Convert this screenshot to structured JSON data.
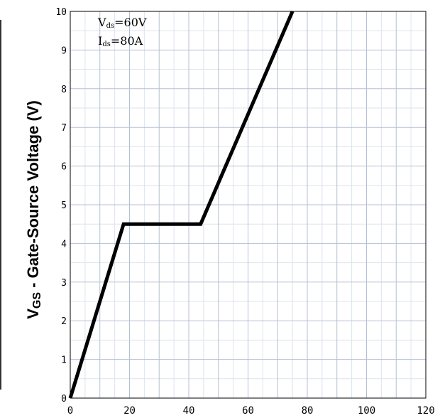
{
  "chart_data": {
    "type": "line",
    "ylabel": {
      "symbol": "V",
      "subscript": "GS",
      "text": " - Gate-Source Voltage (V)"
    },
    "xlabel": "",
    "xlim": [
      0,
      120
    ],
    "ylim": [
      0,
      10
    ],
    "x_ticks": [
      "0",
      "20",
      "40",
      "60",
      "80",
      "100",
      "120"
    ],
    "y_ticks": [
      "0",
      "1",
      "2",
      "3",
      "4",
      "5",
      "6",
      "7",
      "8",
      "9",
      "10"
    ],
    "grid": true,
    "annotations": [
      {
        "main": "V",
        "sub": "ds",
        "rest": "=60V"
      },
      {
        "main": "I",
        "sub": "ds",
        "rest": "=80A"
      }
    ],
    "series": [
      {
        "color": "#000000",
        "points": [
          [
            0,
            0
          ],
          [
            18,
            4.5
          ],
          [
            44,
            4.5
          ],
          [
            75,
            10
          ]
        ]
      }
    ]
  }
}
